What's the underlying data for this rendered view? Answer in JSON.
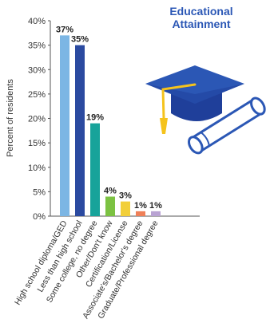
{
  "chart_data": {
    "type": "bar",
    "title": [
      "Educational",
      "Attainment"
    ],
    "ylabel": "Percent of residents",
    "xlabel": "",
    "ylim": [
      0,
      40
    ],
    "yticks": [
      "0%",
      "5%",
      "10%",
      "15%",
      "20%",
      "25%",
      "30%",
      "35%",
      "40%"
    ],
    "categories": [
      "High school diploma/GED",
      "Less than high school",
      "Some college, no degree",
      "Other/Don't know",
      "Certification/License",
      "Associate's/Bachelor's degree",
      "Graduate/Professional degree"
    ],
    "values": [
      37,
      35,
      19,
      4,
      3,
      1,
      1
    ],
    "data_labels": [
      "37%",
      "35%",
      "19%",
      "4%",
      "3%",
      "1%",
      "1%"
    ],
    "bar_colors": [
      "#7cb6e4",
      "#2b4aa0",
      "#17a39a",
      "#7cc242",
      "#f2cf3a",
      "#ef8058",
      "#b9a3d3"
    ],
    "title_color": "#2b57b5",
    "grid": false,
    "legend": "none"
  },
  "decoration": {
    "icon": "graduation-cap-diploma-icon"
  }
}
